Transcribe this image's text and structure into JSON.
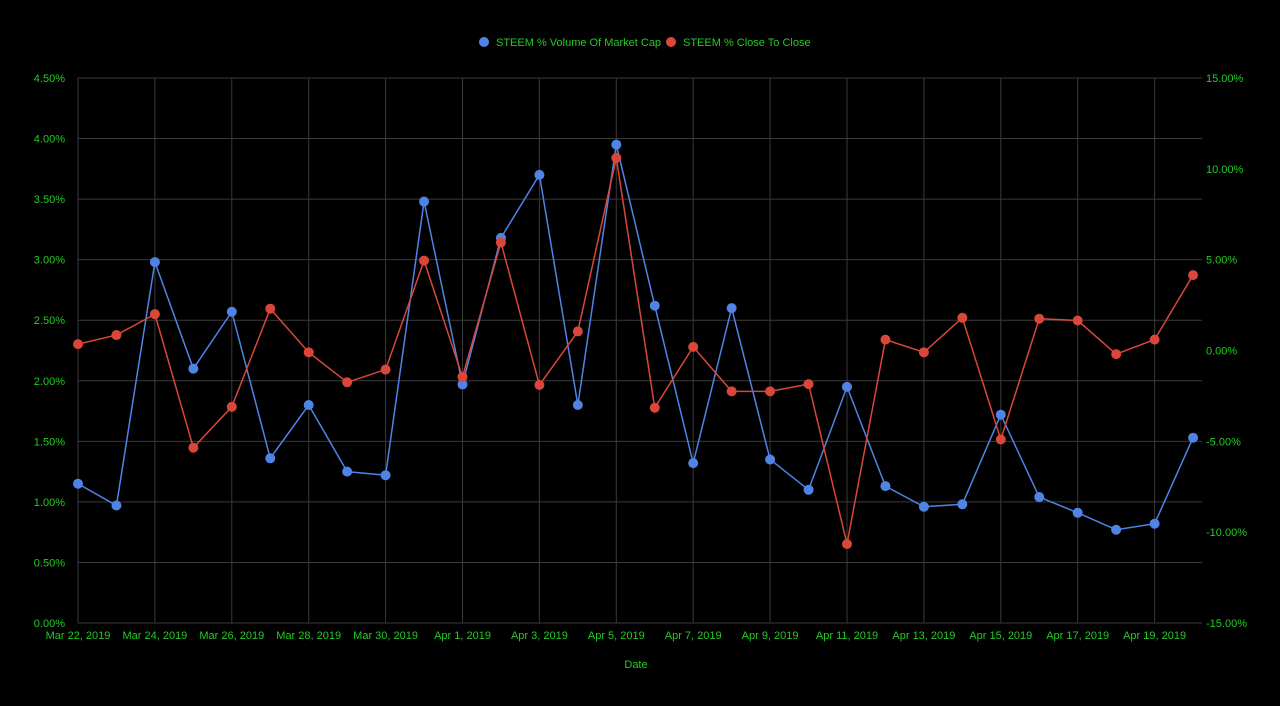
{
  "colors": {
    "background": "#000000",
    "grid": "#3a3a3a",
    "text": "#22cc22",
    "series_volume": "#4f84e6",
    "series_close": "#d9473b"
  },
  "chart_data": {
    "type": "line",
    "title": "",
    "xlabel": "Date",
    "ylabel": "",
    "ylabel_right": "",
    "grid": true,
    "legend_position": "top-center",
    "x": [
      "2019-03-22",
      "2019-03-23",
      "2019-03-24",
      "2019-03-25",
      "2019-03-26",
      "2019-03-27",
      "2019-03-28",
      "2019-03-29",
      "2019-03-30",
      "2019-03-31",
      "2019-04-01",
      "2019-04-02",
      "2019-04-03",
      "2019-04-04",
      "2019-04-05",
      "2019-04-06",
      "2019-04-07",
      "2019-04-08",
      "2019-04-09",
      "2019-04-10",
      "2019-04-11",
      "2019-04-12",
      "2019-04-13",
      "2019-04-14",
      "2019-04-15",
      "2019-04-16",
      "2019-04-17",
      "2019-04-18",
      "2019-04-19",
      "2019-04-20"
    ],
    "x_tick_labels": [
      "Mar 22, 2019",
      "Mar 24, 2019",
      "Mar 26, 2019",
      "Mar 28, 2019",
      "Mar 30, 2019",
      "Apr 1, 2019",
      "Apr 3, 2019",
      "Apr 5, 2019",
      "Apr 7, 2019",
      "Apr 9, 2019",
      "Apr 11, 2019",
      "Apr 13, 2019",
      "Apr 15, 2019",
      "Apr 17, 2019",
      "Apr 19, 2019"
    ],
    "ylim_left": [
      0,
      4.5
    ],
    "y_ticks_left": [
      "0.00%",
      "0.50%",
      "1.00%",
      "1.50%",
      "2.00%",
      "2.50%",
      "3.00%",
      "3.50%",
      "4.00%",
      "4.50%"
    ],
    "ylim_right": [
      -15,
      15
    ],
    "y_ticks_right": [
      "-15.00%",
      "-10.00%",
      "-5.00%",
      "0.00%",
      "5.00%",
      "10.00%",
      "15.00%"
    ],
    "series": [
      {
        "name": "STEEM % Volume Of Market Cap",
        "axis": "left",
        "values": [
          1.15,
          0.97,
          2.98,
          2.1,
          2.57,
          1.36,
          1.8,
          1.25,
          1.22,
          3.48,
          1.97,
          3.18,
          3.7,
          1.8,
          3.95,
          2.62,
          1.32,
          2.6,
          1.35,
          1.1,
          1.95,
          1.13,
          0.96,
          0.98,
          1.72,
          1.04,
          0.91,
          0.77,
          0.82,
          1.53
        ]
      },
      {
        "name": "STEEM % Close To Close",
        "axis": "right",
        "values": [
          0.35,
          0.85,
          2.0,
          -5.35,
          -3.1,
          2.3,
          -0.1,
          -1.75,
          -1.05,
          4.95,
          -1.45,
          5.95,
          -1.9,
          1.05,
          10.6,
          -3.15,
          0.2,
          -2.25,
          -2.25,
          -1.85,
          -10.65,
          0.6,
          -0.1,
          1.8,
          -4.9,
          1.75,
          1.65,
          -0.2,
          0.6,
          4.15
        ]
      }
    ]
  }
}
